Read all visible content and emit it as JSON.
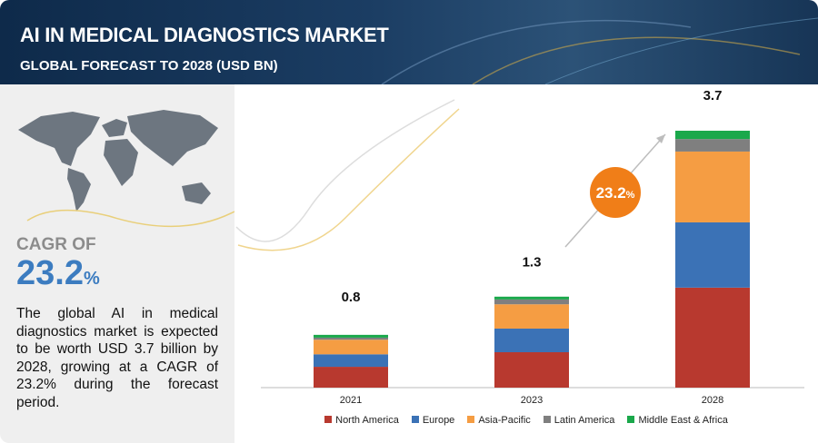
{
  "header": {
    "title": "AI IN MEDICAL DIAGNOSTICS MARKET",
    "subtitle": "GLOBAL FORECAST TO 2028 (USD BN)"
  },
  "sidebar": {
    "cagr_label": "CAGR OF",
    "cagr_value": 23.2,
    "cagr_unit": "%",
    "description": "The global AI in medical diagnostics market is expected to be worth USD 3.7 billion by 2028, growing at a CAGR of 23.2% during the forecast period."
  },
  "chart_data": {
    "type": "stacked-bar",
    "categories": [
      "2021",
      "2023",
      "2028"
    ],
    "totals": [
      0.8,
      1.3,
      3.7
    ],
    "series": [
      {
        "name": "North America",
        "color": "#b8392f",
        "values": [
          0.3,
          0.51,
          1.44
        ]
      },
      {
        "name": "Europe",
        "color": "#3b72b6",
        "values": [
          0.18,
          0.34,
          0.94
        ]
      },
      {
        "name": "Asia-Pacific",
        "color": "#f59d43",
        "values": [
          0.21,
          0.35,
          1.02
        ]
      },
      {
        "name": "Latin America",
        "color": "#7f7f7f",
        "values": [
          0.03,
          0.07,
          0.18
        ]
      },
      {
        "name": "Middle East & Africa",
        "color": "#1aa84b",
        "values": [
          0.04,
          0.04,
          0.12
        ]
      }
    ],
    "cagr_badge": {
      "value": 23.2,
      "unit": "%"
    }
  }
}
